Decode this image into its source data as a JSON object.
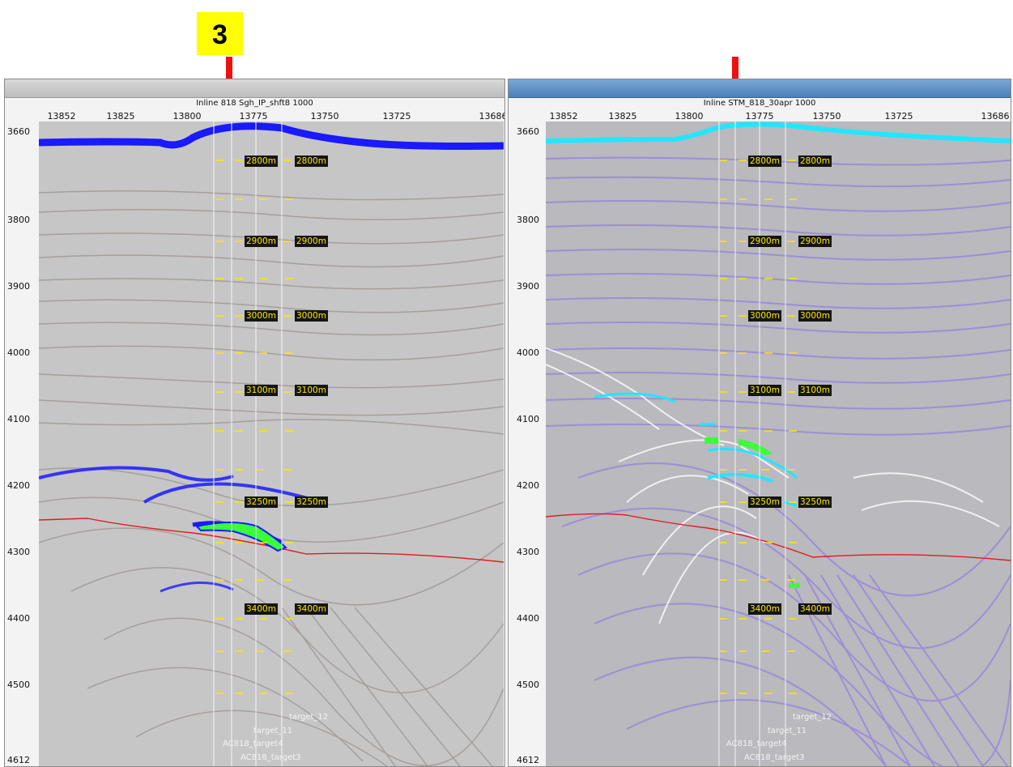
{
  "badge": {
    "label": "3"
  },
  "panels": [
    {
      "id": "left",
      "title": "Inline 818 Sgh_IP_shft8 1000",
      "xticks": [
        "13852",
        "13825",
        "13800",
        "13775",
        "13750",
        "13725",
        "13686"
      ],
      "yticks": [
        "3660",
        "3800",
        "3900",
        "4000",
        "4100",
        "4200",
        "4300",
        "4400",
        "4500",
        "4612"
      ],
      "depth_labels": [
        "2800m",
        "2900m",
        "3000m",
        "3100m",
        "3250m",
        "3400m"
      ],
      "wells": [
        "target_12",
        "target_11",
        "AC818_target4",
        "AC818_target3"
      ],
      "colors": {
        "horizon_top": "#1a1aff",
        "horizon_red": "#e21b1b",
        "target_fill": "#39ff39"
      }
    },
    {
      "id": "right",
      "title": "Inline STM_818_30apr 1000",
      "xticks": [
        "13852",
        "13825",
        "13800",
        "13775",
        "13750",
        "13725",
        "13686"
      ],
      "yticks": [
        "3660",
        "3800",
        "3900",
        "4000",
        "4100",
        "4200",
        "4300",
        "4400",
        "4500",
        "4612"
      ],
      "depth_labels": [
        "2800m",
        "2900m",
        "3000m",
        "3100m",
        "3250m",
        "3400m"
      ],
      "wells": [
        "target_12",
        "target_11",
        "AC818_target4",
        "AC818_target3"
      ],
      "colors": {
        "horizon_top": "#22e6ff",
        "horizon_red": "#e21b1b",
        "target_fill": "#39ff39"
      }
    }
  ],
  "annotations": {
    "arrow_color": "#ee1111",
    "arrow_icon": "down-arrow-icon"
  }
}
